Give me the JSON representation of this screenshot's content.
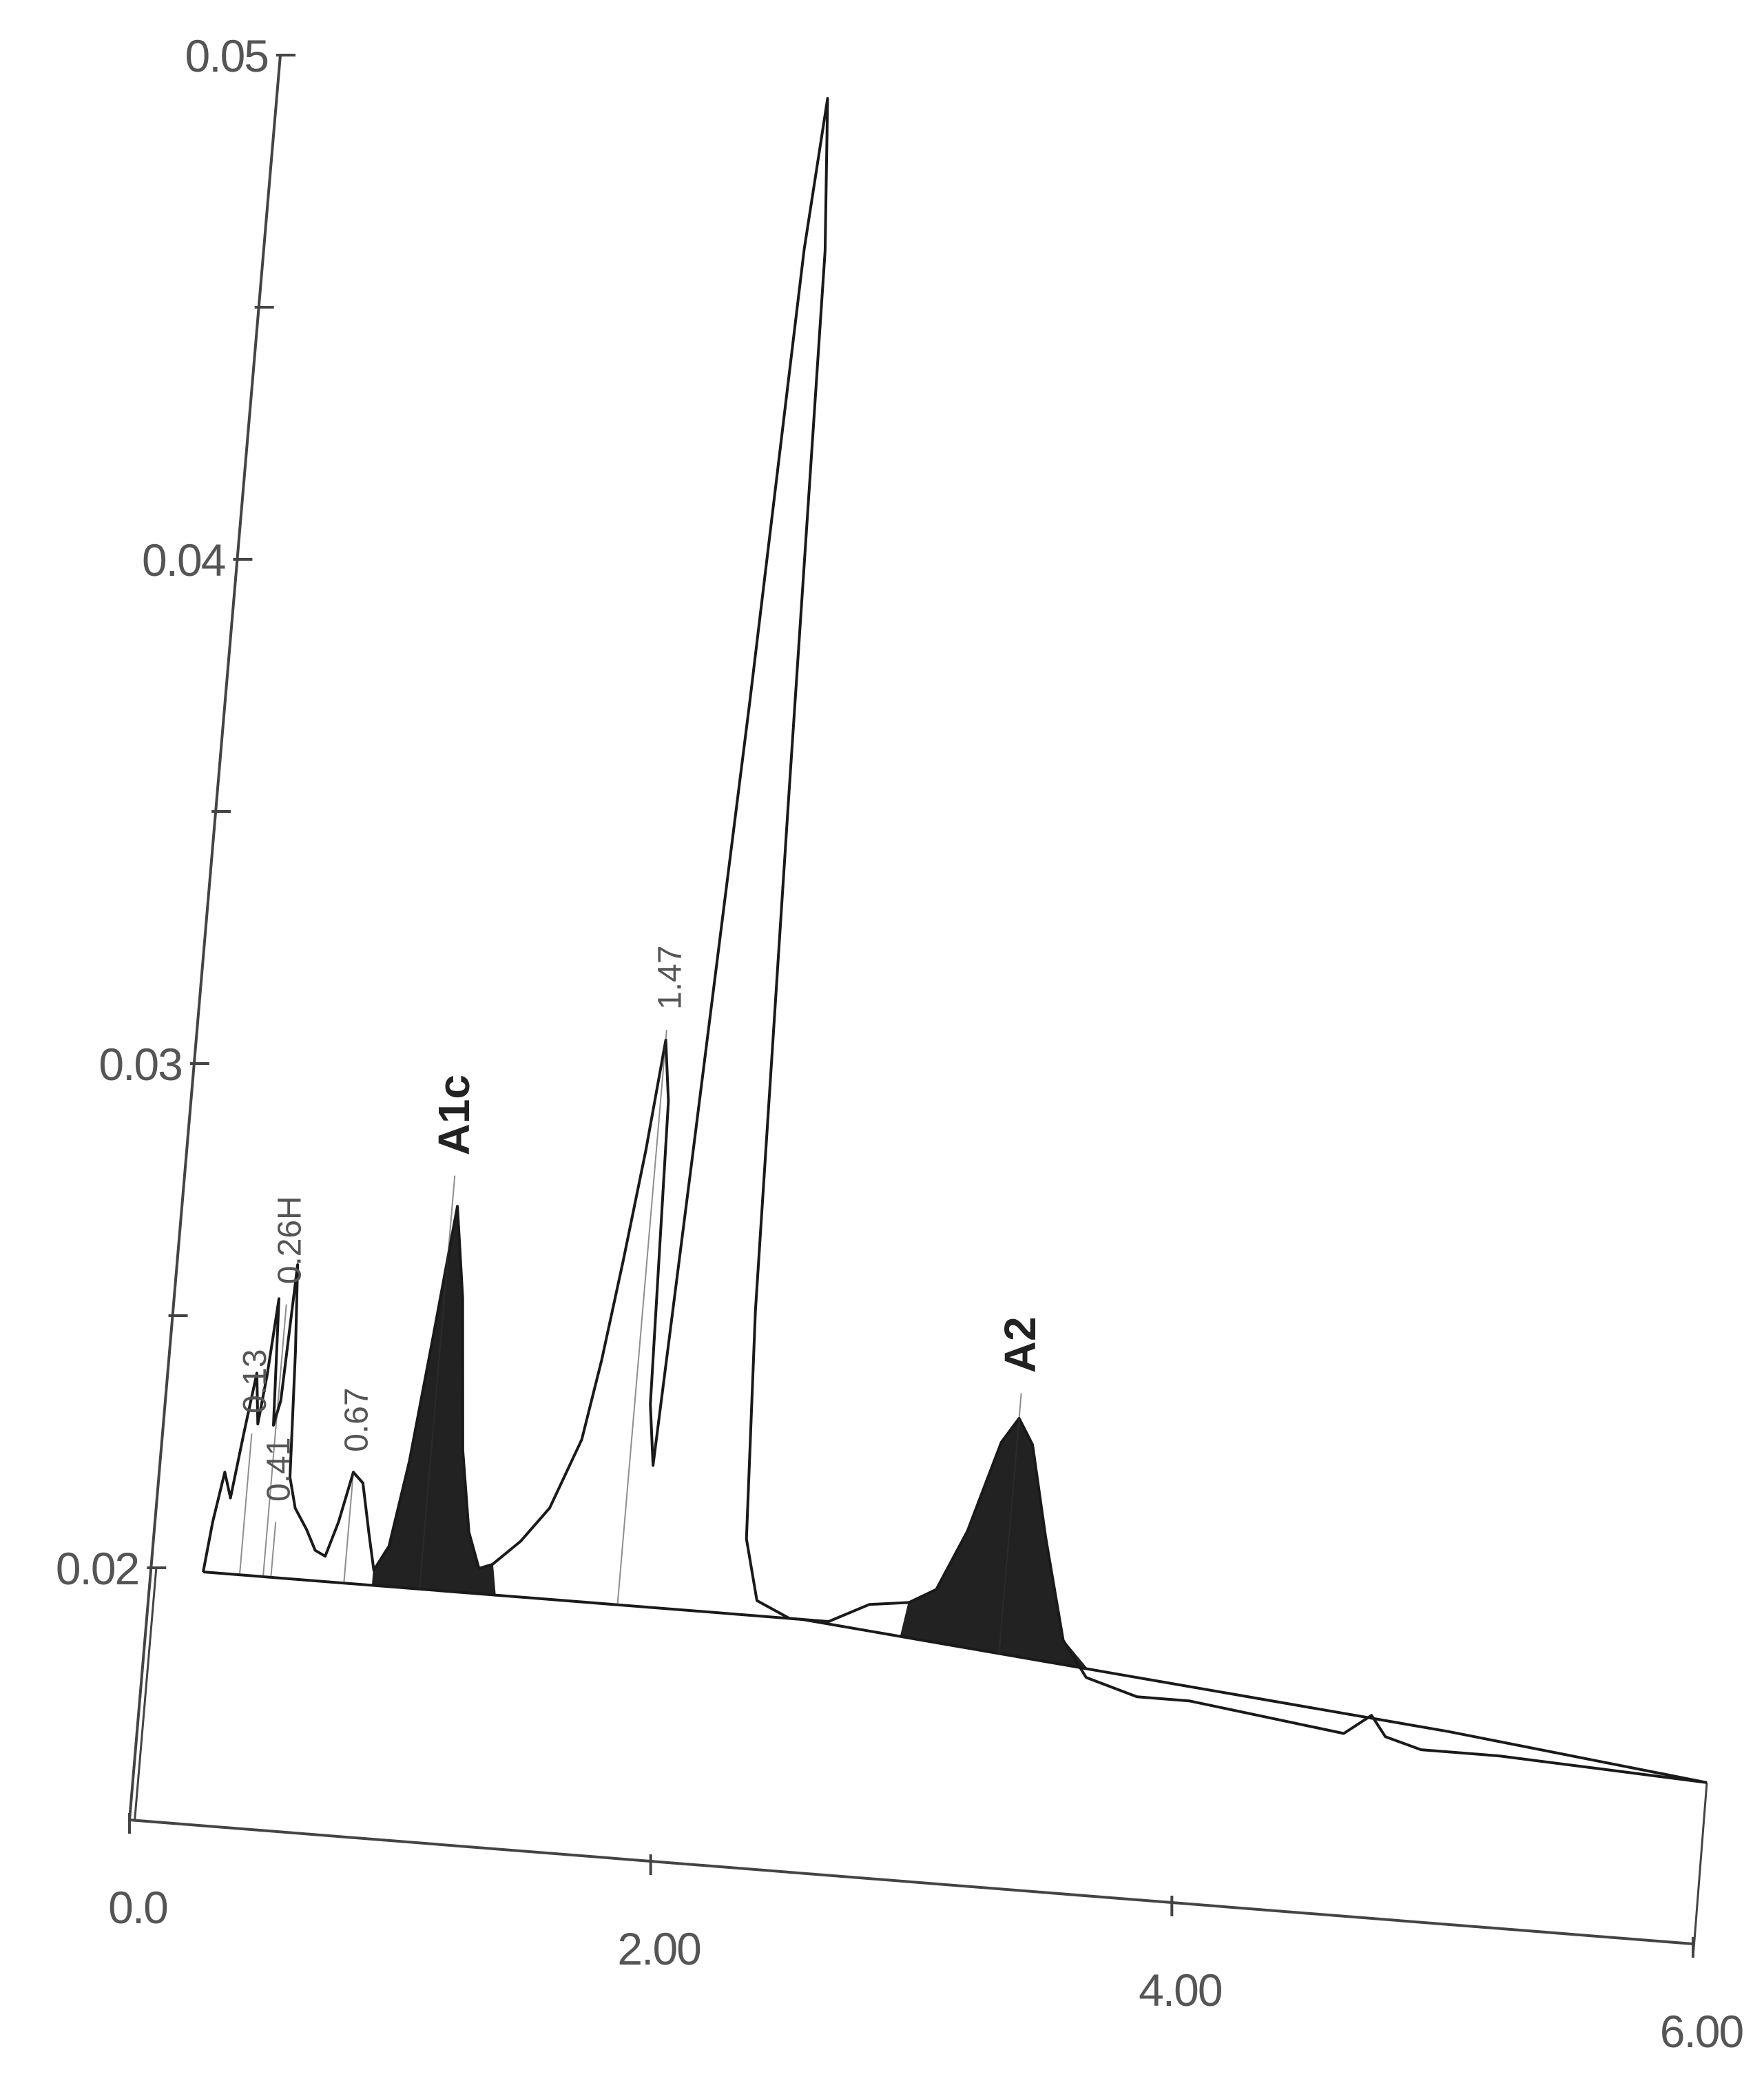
{
  "chart_data": {
    "type": "line",
    "title": "",
    "xlabel": "",
    "ylabel": "",
    "xlim": [
      0,
      6
    ],
    "ylim": [
      0.015,
      0.05
    ],
    "x_ticks": [
      {
        "value": 0,
        "label": "0.0"
      },
      {
        "value": 2,
        "label": "2.00"
      },
      {
        "value": 4,
        "label": "4.00"
      },
      {
        "value": 6,
        "label": "6.00"
      }
    ],
    "y_ticks": [
      {
        "value": 0.02,
        "label": "0.02"
      },
      {
        "value": 0.025,
        "label": ""
      },
      {
        "value": 0.03,
        "label": "0.03"
      },
      {
        "value": 0.035,
        "label": ""
      },
      {
        "value": 0.04,
        "label": "0.04"
      },
      {
        "value": 0.045,
        "label": ""
      },
      {
        "value": 0.05,
        "label": "0.05"
      }
    ],
    "baseline": [
      [
        0.2,
        0.02
      ],
      [
        2.5,
        0.02
      ],
      [
        5.0,
        0.0188
      ],
      [
        6.0,
        0.0182
      ]
    ],
    "series": [
      {
        "values": [
          [
            0.2,
            0.02
          ],
          [
            0.22,
            0.021
          ],
          [
            0.25,
            0.022
          ],
          [
            0.28,
            0.0215
          ],
          [
            0.31,
            0.0228
          ],
          [
            0.34,
            0.024
          ],
          [
            0.36,
            0.023
          ],
          [
            0.38,
            0.024
          ],
          [
            0.4,
            0.0255
          ],
          [
            0.42,
            0.023
          ],
          [
            0.44,
            0.0235
          ],
          [
            0.46,
            0.0262
          ],
          [
            0.48,
            0.0245
          ],
          [
            0.5,
            0.022
          ],
          [
            0.53,
            0.0214
          ],
          [
            0.58,
            0.021
          ],
          [
            0.62,
            0.0206
          ],
          [
            0.66,
            0.0205
          ],
          [
            0.7,
            0.0212
          ],
          [
            0.74,
            0.0222
          ],
          [
            0.78,
            0.022
          ],
          [
            0.82,
            0.021
          ],
          [
            0.85,
            0.0203
          ],
          [
            0.9,
            0.0208
          ],
          [
            0.95,
            0.0225
          ],
          [
            1.0,
            0.025
          ],
          [
            1.05,
            0.0276
          ],
          [
            1.1,
            0.0258
          ],
          [
            1.15,
            0.0228
          ],
          [
            1.2,
            0.0212
          ],
          [
            1.25,
            0.0205
          ],
          [
            1.3,
            0.0206
          ],
          [
            1.4,
            0.0211
          ],
          [
            1.5,
            0.0218
          ],
          [
            1.6,
            0.0232
          ],
          [
            1.65,
            0.0248
          ],
          [
            1.7,
            0.0268
          ],
          [
            1.75,
            0.029
          ],
          [
            1.79,
            0.0312
          ],
          [
            1.82,
            0.03
          ],
          [
            1.85,
            0.024
          ],
          [
            1.88,
            0.0228
          ],
          [
            1.93,
            0.029
          ],
          [
            2.0,
            0.038
          ],
          [
            2.06,
            0.047
          ],
          [
            2.1,
            0.052
          ],
          [
            2.14,
            0.047
          ],
          [
            2.18,
            0.036
          ],
          [
            2.22,
            0.026
          ],
          [
            2.26,
            0.0215
          ],
          [
            2.32,
            0.0203
          ],
          [
            2.45,
            0.02
          ],
          [
            2.6,
            0.02
          ],
          [
            2.75,
            0.0204
          ],
          [
            2.9,
            0.0205
          ],
          [
            3.0,
            0.0208
          ],
          [
            3.1,
            0.022
          ],
          [
            3.2,
            0.0238
          ],
          [
            3.26,
            0.0243
          ],
          [
            3.32,
            0.0238
          ],
          [
            3.4,
            0.022
          ],
          [
            3.5,
            0.02
          ],
          [
            3.6,
            0.0193
          ],
          [
            3.8,
            0.019
          ],
          [
            4.0,
            0.019
          ],
          [
            4.3,
            0.0188
          ],
          [
            4.6,
            0.0186
          ],
          [
            4.7,
            0.019
          ],
          [
            4.76,
            0.0186
          ],
          [
            4.9,
            0.0184
          ],
          [
            5.2,
            0.0184
          ],
          [
            5.6,
            0.0183
          ],
          [
            6.0,
            0.0182
          ]
        ]
      }
    ],
    "shaded_peaks": [
      {
        "label": "A1c",
        "x_range": [
          0.85,
          1.32
        ],
        "apex": [
          1.05,
          0.0276
        ]
      },
      {
        "label": "A2",
        "x_range": [
          2.88,
          3.62
        ],
        "apex": [
          3.26,
          0.0243
        ]
      }
    ],
    "peak_annotations": [
      {
        "text": "0.13",
        "x": 0.34,
        "y": 0.0232,
        "bold": false
      },
      {
        "text": "0.41",
        "x": 0.46,
        "y": 0.0215,
        "bold": false
      },
      {
        "text": "0.26H",
        "x": 0.43,
        "y": 0.0258,
        "bold": false
      },
      {
        "text": "0.67",
        "x": 0.74,
        "y": 0.0226,
        "bold": false
      },
      {
        "text": "A1c",
        "x": 1.03,
        "y": 0.0286,
        "bold": true
      },
      {
        "text": "1.47",
        "x": 1.79,
        "y": 0.0318,
        "bold": false
      },
      {
        "text": "A2",
        "x": 3.26,
        "y": 0.0252,
        "bold": true
      }
    ],
    "grid": false,
    "colors": {
      "axis": "#444444",
      "trace": "#1a1a1a",
      "fill": "#222222",
      "label": "#555555"
    }
  }
}
